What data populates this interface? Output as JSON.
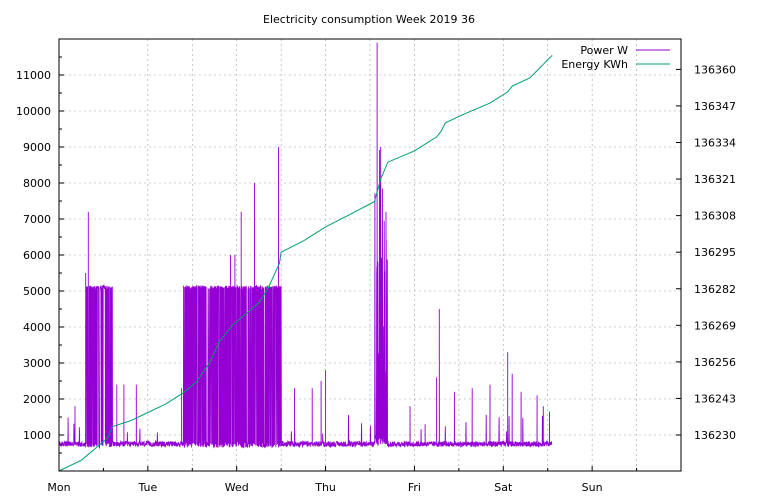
{
  "chart_data": {
    "type": "line",
    "title": "Electricity consumption Week 2019 36",
    "x_tick_labels": [
      "Mon",
      "Tue",
      "Wed",
      "Thu",
      "Fri",
      "Sat",
      "Sun"
    ],
    "xlim_days": [
      0,
      7
    ],
    "y_left": {
      "ticks": [
        1000,
        2000,
        3000,
        4000,
        5000,
        6000,
        7000,
        8000,
        9000,
        10000,
        11000
      ],
      "ylim": [
        0,
        12000
      ]
    },
    "y_right": {
      "ticks": [
        136230,
        136243,
        136256,
        136269,
        136282,
        136295,
        136308,
        136321,
        136334,
        136347,
        136360
      ],
      "ylim": [
        136217.2,
        136370.8
      ]
    },
    "grid": true,
    "legend_position": "top-right",
    "series": [
      {
        "name": "Power W",
        "axis": "left",
        "color": "#9400d3",
        "baseline_w": 750,
        "bursts": [
          {
            "start_day": 0.3,
            "end_day": 0.6,
            "low_w": 650,
            "high_w": 5150
          },
          {
            "start_day": 1.4,
            "end_day": 2.5,
            "low_w": 650,
            "high_w": 5150
          },
          {
            "start_day": 3.55,
            "end_day": 3.7,
            "low_w": 700,
            "high_w": 9000
          }
        ],
        "peaks": [
          {
            "day": 0.33,
            "w": 7200
          },
          {
            "day": 0.3,
            "w": 5500
          },
          {
            "day": 0.18,
            "w": 1800
          },
          {
            "day": 0.65,
            "w": 2400
          },
          {
            "day": 0.73,
            "w": 2400
          },
          {
            "day": 0.87,
            "w": 2400
          },
          {
            "day": 1.38,
            "w": 2300
          },
          {
            "day": 1.57,
            "w": 5150
          },
          {
            "day": 1.93,
            "w": 6000
          },
          {
            "day": 1.98,
            "w": 6000
          },
          {
            "day": 2.05,
            "w": 7200
          },
          {
            "day": 2.2,
            "w": 8000
          },
          {
            "day": 2.47,
            "w": 9000
          },
          {
            "day": 2.65,
            "w": 2300
          },
          {
            "day": 2.85,
            "w": 2300
          },
          {
            "day": 2.95,
            "w": 2500
          },
          {
            "day": 3.0,
            "w": 2800
          },
          {
            "day": 3.58,
            "w": 11900
          },
          {
            "day": 3.62,
            "w": 9000
          },
          {
            "day": 3.68,
            "w": 7200
          },
          {
            "day": 3.95,
            "w": 1800
          },
          {
            "day": 4.12,
            "w": 1300
          },
          {
            "day": 4.25,
            "w": 2600
          },
          {
            "day": 4.28,
            "w": 4500
          },
          {
            "day": 4.45,
            "w": 2200
          },
          {
            "day": 4.65,
            "w": 2300
          },
          {
            "day": 4.85,
            "w": 2400
          },
          {
            "day": 5.05,
            "w": 3300
          },
          {
            "day": 5.1,
            "w": 2700
          },
          {
            "day": 5.2,
            "w": 2200
          },
          {
            "day": 5.38,
            "w": 2100
          },
          {
            "day": 5.45,
            "w": 1800
          },
          {
            "day": 5.52,
            "w": 1650
          }
        ],
        "end_day": 5.55
      },
      {
        "name": "Energy KWh",
        "axis": "right",
        "color": "#009e73",
        "points": [
          [
            0.0,
            136217.2
          ],
          [
            0.25,
            136221
          ],
          [
            0.4,
            136225
          ],
          [
            0.55,
            136229
          ],
          [
            0.6,
            136233
          ],
          [
            0.8,
            136235
          ],
          [
            1.0,
            136238
          ],
          [
            1.2,
            136241
          ],
          [
            1.4,
            136245
          ],
          [
            1.55,
            136249
          ],
          [
            1.7,
            136256
          ],
          [
            1.8,
            136263
          ],
          [
            1.95,
            136269
          ],
          [
            2.1,
            136273
          ],
          [
            2.25,
            136277
          ],
          [
            2.35,
            136282
          ],
          [
            2.48,
            136291
          ],
          [
            2.5,
            136295
          ],
          [
            2.75,
            136299
          ],
          [
            3.0,
            136304
          ],
          [
            3.25,
            136308
          ],
          [
            3.55,
            136313
          ],
          [
            3.62,
            136321
          ],
          [
            3.7,
            136327
          ],
          [
            4.0,
            136331
          ],
          [
            4.25,
            136336
          ],
          [
            4.3,
            136338
          ],
          [
            4.35,
            136341
          ],
          [
            4.55,
            136344
          ],
          [
            4.85,
            136348
          ],
          [
            5.05,
            136352
          ],
          [
            5.1,
            136354
          ],
          [
            5.3,
            136357
          ],
          [
            5.55,
            136365
          ]
        ]
      }
    ]
  }
}
